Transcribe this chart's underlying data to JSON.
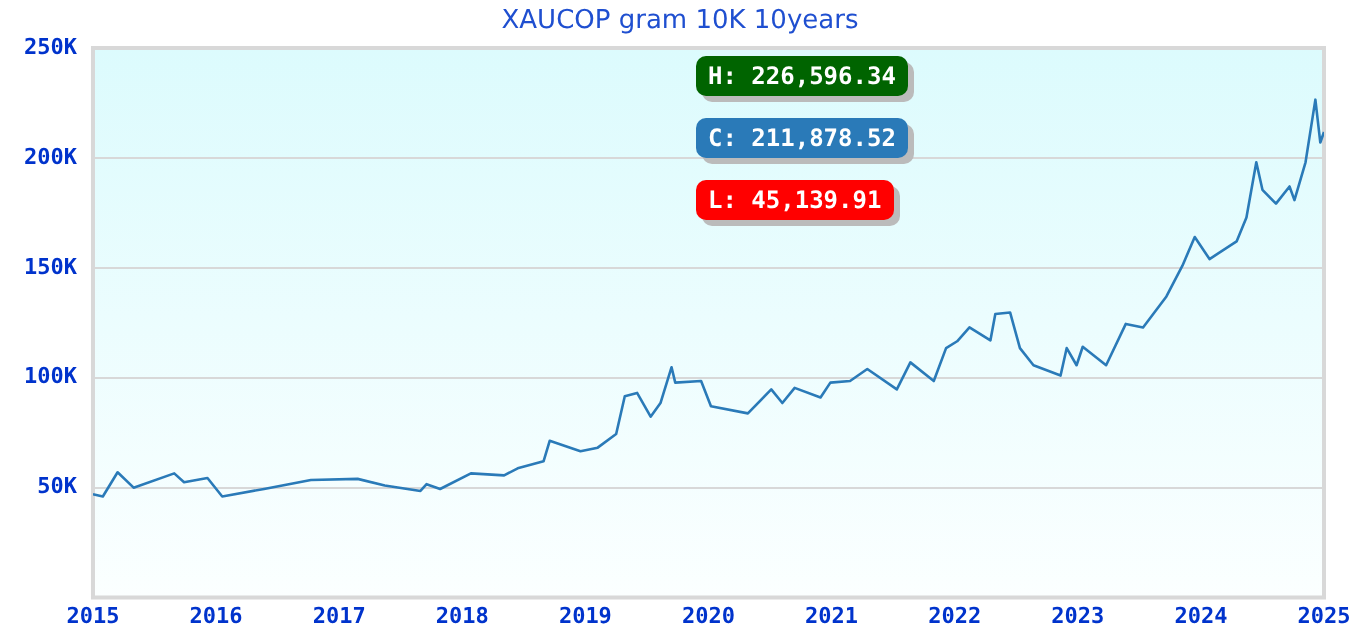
{
  "chart_data": {
    "type": "line",
    "title": "XAUCOP gram 10K 10years",
    "annotations": [
      "H: 226,596.34",
      "C: 211,878.52",
      "L: 45,139.91"
    ],
    "xlim": [
      2015,
      2025
    ],
    "xticks": [
      2015,
      2016,
      2017,
      2018,
      2019,
      2020,
      2021,
      2022,
      2023,
      2024,
      2025
    ],
    "ylim": [
      0,
      250000
    ],
    "yticks": [
      {
        "value": 0,
        "label": null
      },
      {
        "value": 50000,
        "label": "50K"
      },
      {
        "value": 100000,
        "label": "100K"
      },
      {
        "value": 150000,
        "label": "150K"
      },
      {
        "value": 200000,
        "label": "200K"
      },
      {
        "value": 250000,
        "label": "250K"
      }
    ],
    "grid": "y",
    "legend": false,
    "marker": "none",
    "line_style": "solid",
    "series": [
      {
        "color": "#2a7ab8",
        "x": [
          2015.0,
          2015.08,
          2015.2,
          2015.33,
          2015.66,
          2015.74,
          2015.93,
          2016.05,
          2016.39,
          2016.77,
          2017.15,
          2017.37,
          2017.66,
          2017.71,
          2017.82,
          2018.07,
          2018.34,
          2018.45,
          2018.66,
          2018.71,
          2018.96,
          2019.1,
          2019.25,
          2019.32,
          2019.42,
          2019.53,
          2019.61,
          2019.7,
          2019.73,
          2019.94,
          2020.02,
          2020.32,
          2020.51,
          2020.6,
          2020.7,
          2020.91,
          2020.99,
          2021.15,
          2021.29,
          2021.53,
          2021.64,
          2021.83,
          2021.93,
          2022.02,
          2022.12,
          2022.29,
          2022.33,
          2022.45,
          2022.53,
          2022.64,
          2022.86,
          2022.91,
          2022.99,
          2023.04,
          2023.23,
          2023.39,
          2023.53,
          2023.72,
          2023.85,
          2023.95,
          2024.07,
          2024.29,
          2024.37,
          2024.45,
          2024.5,
          2024.61,
          2024.72,
          2024.76,
          2024.85,
          2024.93,
          2024.97,
          2025.0
        ],
        "values": [
          47000,
          46000,
          57000,
          50000,
          56500,
          52500,
          54400,
          46000,
          49400,
          53500,
          54000,
          51000,
          48500,
          51600,
          49400,
          56500,
          55600,
          58800,
          62000,
          71300,
          66600,
          68200,
          74400,
          91600,
          93100,
          82300,
          88500,
          104800,
          97800,
          98500,
          87000,
          83800,
          94700,
          88500,
          95400,
          91000,
          97800,
          98500,
          104000,
          94700,
          107000,
          98500,
          113500,
          116600,
          122900,
          117000,
          129000,
          129700,
          113500,
          105700,
          101000,
          113500,
          105700,
          114100,
          105700,
          124500,
          122900,
          137000,
          151000,
          164000,
          154000,
          162000,
          172900,
          198000,
          185500,
          179200,
          187000,
          180800,
          198000,
          226500,
          207000,
          211800
        ]
      }
    ]
  }
}
